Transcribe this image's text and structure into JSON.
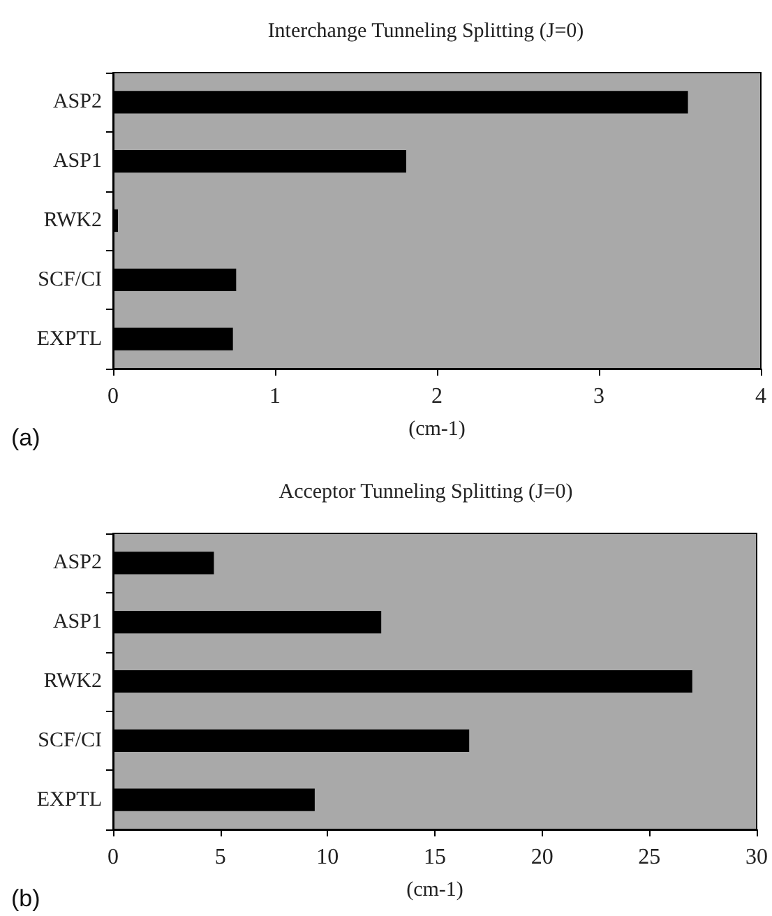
{
  "chart_data": [
    {
      "type": "bar",
      "orientation": "horizontal",
      "title": "Interchange Tunneling Splitting (J=0)",
      "xlabel": "(cm-1)",
      "annotations": [
        "(a)"
      ],
      "categories": [
        "ASP2",
        "ASP1",
        "RWK2",
        "SCF/CI",
        "EXPTL"
      ],
      "values": [
        3.55,
        1.81,
        0.03,
        0.76,
        0.74
      ],
      "color": "#000000",
      "xlim": [
        0,
        4
      ],
      "xticks": [
        0,
        1,
        2,
        3,
        4
      ],
      "grid": false
    },
    {
      "type": "bar",
      "orientation": "horizontal",
      "title": "Acceptor Tunneling Splitting (J=0)",
      "xlabel": "(cm-1)",
      "annotations": [
        "(b)"
      ],
      "categories": [
        "ASP2",
        "ASP1",
        "RWK2",
        "SCF/CI",
        "EXPTL"
      ],
      "values": [
        4.7,
        12.5,
        27.0,
        16.6,
        9.4
      ],
      "color": "#000000",
      "xlim": [
        0,
        30
      ],
      "xticks": [
        0,
        5,
        10,
        15,
        20,
        25,
        30
      ],
      "grid": false
    }
  ]
}
